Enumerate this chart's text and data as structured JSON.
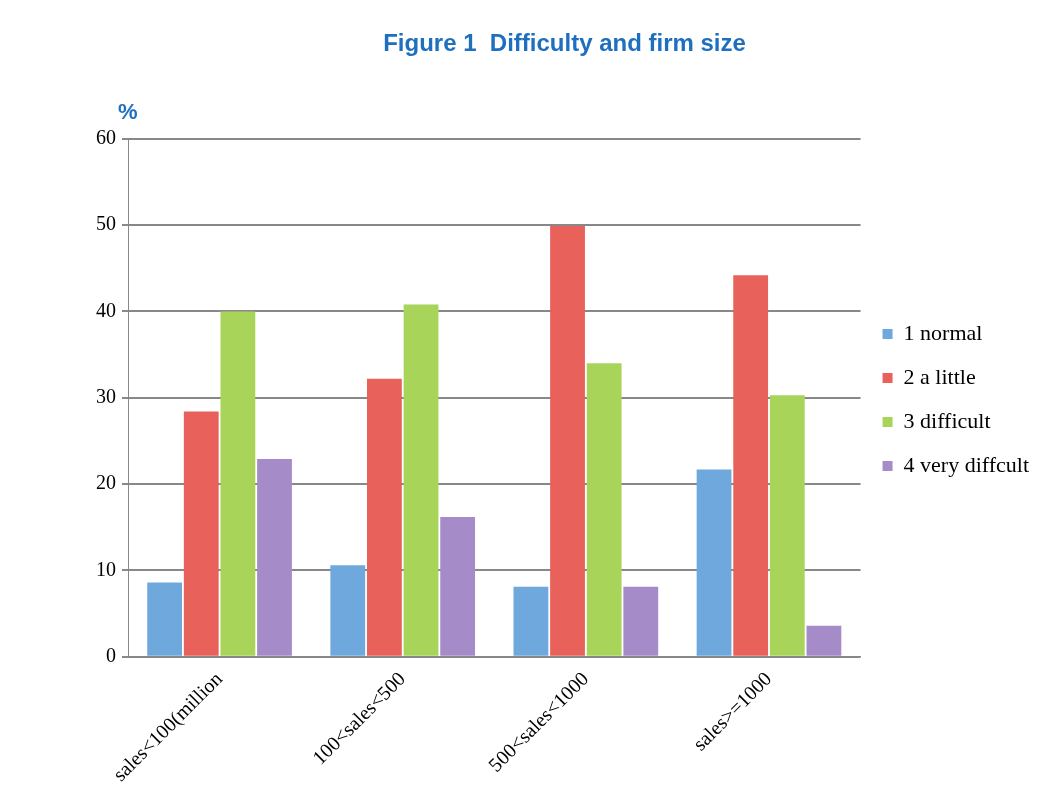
{
  "chart_data": {
    "type": "bar",
    "title": "Figure 1  Difficulty and firm size",
    "ylabel": "%",
    "categories": [
      "sales<100(million",
      "100<sales<500",
      "500<sales<1000",
      "sales>=1000"
    ],
    "series": [
      {
        "name": "1 normal",
        "color": "#6fa8dc",
        "values": [
          8.6,
          10.6,
          8.1,
          21.7
        ]
      },
      {
        "name": "2 a little",
        "color": "#e8615a",
        "values": [
          28.4,
          32.2,
          49.9,
          44.2
        ]
      },
      {
        "name": "3 difficult",
        "color": "#a8d45a",
        "values": [
          40.0,
          40.8,
          34.0,
          30.3
        ]
      },
      {
        "name": "4 very diffcult",
        "color": "#a58cc8",
        "values": [
          22.9,
          16.2,
          8.1,
          3.6
        ]
      }
    ],
    "ylim": [
      0,
      60
    ],
    "yticks": [
      0,
      10,
      20,
      30,
      40,
      50,
      60
    ],
    "grid": "y",
    "legend": "right"
  }
}
